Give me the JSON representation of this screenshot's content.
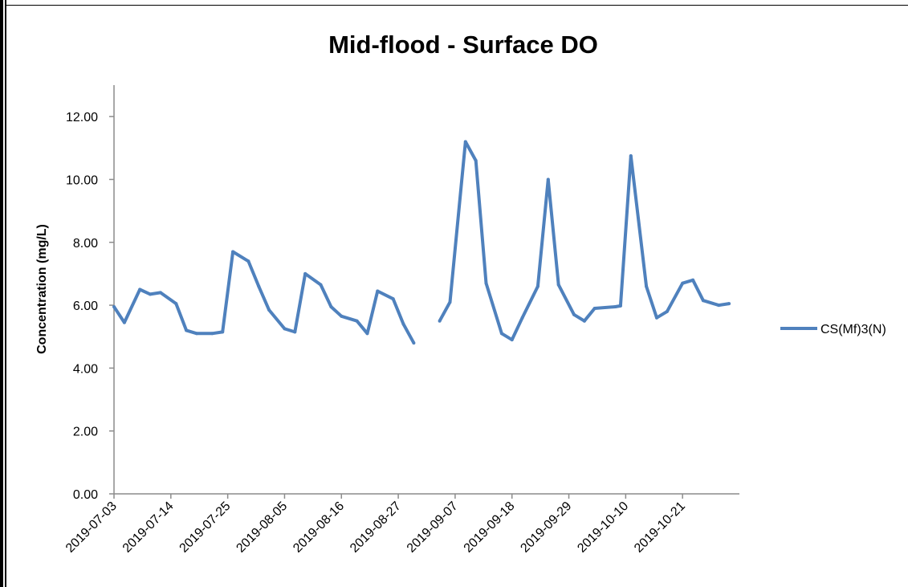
{
  "chart_data": {
    "type": "line",
    "title": "Mid-flood - Surface DO",
    "xlabel": "",
    "ylabel": "Concentration (mg/L)",
    "ylim": [
      0,
      13
    ],
    "yticks": [
      "0.00",
      "2.00",
      "4.00",
      "6.00",
      "8.00",
      "10.00",
      "12.00"
    ],
    "xlim": [
      "2019-07-03",
      "2019-10-31"
    ],
    "xticks": [
      "2019-07-03",
      "2019-07-14",
      "2019-07-25",
      "2019-08-05",
      "2019-08-16",
      "2019-08-27",
      "2019-09-07",
      "2019-09-18",
      "2019-09-29",
      "2019-10-10",
      "2019-10-21"
    ],
    "legend_position": "right",
    "grid": false,
    "series": [
      {
        "name": "CS(Mf)3(N)",
        "color": "#4F81BD",
        "points": [
          [
            "2019-07-03",
            5.95
          ],
          [
            "2019-07-05",
            5.45
          ],
          [
            "2019-07-08",
            6.5
          ],
          [
            "2019-07-10",
            6.35
          ],
          [
            "2019-07-12",
            6.4
          ],
          [
            "2019-07-15",
            6.05
          ],
          [
            "2019-07-17",
            5.2
          ],
          [
            "2019-07-19",
            5.1
          ],
          [
            "2019-07-22",
            5.1
          ],
          [
            "2019-07-24",
            5.15
          ],
          [
            "2019-07-26",
            7.7
          ],
          [
            "2019-07-29",
            7.4
          ],
          [
            "2019-07-31",
            6.6
          ],
          [
            "2019-08-02",
            5.85
          ],
          [
            "2019-08-05",
            5.25
          ],
          [
            "2019-08-07",
            5.15
          ],
          [
            "2019-08-09",
            7.0
          ],
          [
            "2019-08-12",
            6.65
          ],
          [
            "2019-08-14",
            5.95
          ],
          [
            "2019-08-16",
            5.65
          ],
          [
            "2019-08-19",
            5.5
          ],
          [
            "2019-08-21",
            5.1
          ],
          [
            "2019-08-23",
            6.45
          ],
          [
            "2019-08-26",
            6.2
          ],
          [
            "2019-08-28",
            5.4
          ],
          [
            "2019-08-30",
            4.8
          ],
          null,
          [
            "2019-09-04",
            5.5
          ],
          [
            "2019-09-06",
            6.1
          ],
          [
            "2019-09-09",
            11.2
          ],
          [
            "2019-09-11",
            10.6
          ],
          [
            "2019-09-13",
            6.7
          ],
          [
            "2019-09-16",
            5.1
          ],
          [
            "2019-09-18",
            4.9
          ],
          [
            "2019-09-20",
            5.6
          ],
          [
            "2019-09-23",
            6.6
          ],
          [
            "2019-09-25",
            10.0
          ],
          [
            "2019-09-27",
            6.65
          ],
          [
            "2019-09-30",
            5.7
          ],
          [
            "2019-10-02",
            5.5
          ],
          [
            "2019-10-04",
            5.9
          ],
          [
            "2019-10-08",
            5.95
          ],
          [
            "2019-10-09",
            5.98
          ],
          [
            "2019-10-11",
            10.75
          ],
          [
            "2019-10-14",
            6.6
          ],
          [
            "2019-10-16",
            5.6
          ],
          [
            "2019-10-18",
            5.8
          ],
          [
            "2019-10-21",
            6.7
          ],
          [
            "2019-10-23",
            6.8
          ],
          [
            "2019-10-25",
            6.15
          ],
          [
            "2019-10-28",
            6.0
          ],
          [
            "2019-10-30",
            6.05
          ]
        ]
      }
    ]
  }
}
